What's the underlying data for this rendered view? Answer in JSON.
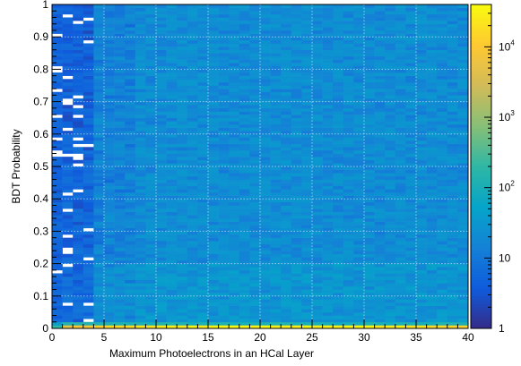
{
  "chart_data": {
    "type": "heatmap",
    "title": "",
    "xlabel": "Maximum Photoelectrons in an HCal Layer",
    "ylabel": "BDT Probability",
    "xlim": [
      0,
      40
    ],
    "ylim": [
      0,
      1
    ],
    "x_ticks": [
      0,
      5,
      10,
      15,
      20,
      25,
      30,
      35,
      40
    ],
    "x_tick_labels": [
      "0",
      "5",
      "10",
      "15",
      "20",
      "25",
      "30",
      "35",
      "40"
    ],
    "y_ticks": [
      0,
      0.1,
      0.2,
      0.3,
      0.4,
      0.5,
      0.6,
      0.7,
      0.8,
      0.9,
      1
    ],
    "y_tick_labels": [
      "0",
      "0.1",
      "0.2",
      "0.3",
      "0.4",
      "0.5",
      "0.6",
      "0.7",
      "0.8",
      "0.9",
      "1"
    ],
    "grid": true,
    "bins": {
      "x_bins": 40,
      "y_bins": 100,
      "x_range": [
        0,
        40
      ],
      "y_range": [
        0,
        1
      ]
    },
    "colorbar": {
      "scale": "log",
      "range": [
        1,
        40000
      ],
      "labels": [
        {
          "value": 1,
          "base": "1",
          "exp": ""
        },
        {
          "value": 10,
          "base": "10",
          "exp": ""
        },
        {
          "value": 100,
          "base": "10",
          "exp": "2"
        },
        {
          "value": 1000,
          "base": "10",
          "exp": "3"
        },
        {
          "value": 10000,
          "base": "10",
          "exp": "4"
        }
      ],
      "palette": [
        "#352a87",
        "#0f5cdd",
        "#1481d6",
        "#06a4ca",
        "#2eb7a4",
        "#87bf77",
        "#d1bb59",
        "#fec832",
        "#f9fb0e"
      ]
    },
    "description_counts": {
      "bottom_row_peak": 40000,
      "typical_body": 25,
      "empty_bins_low_x": true
    }
  }
}
